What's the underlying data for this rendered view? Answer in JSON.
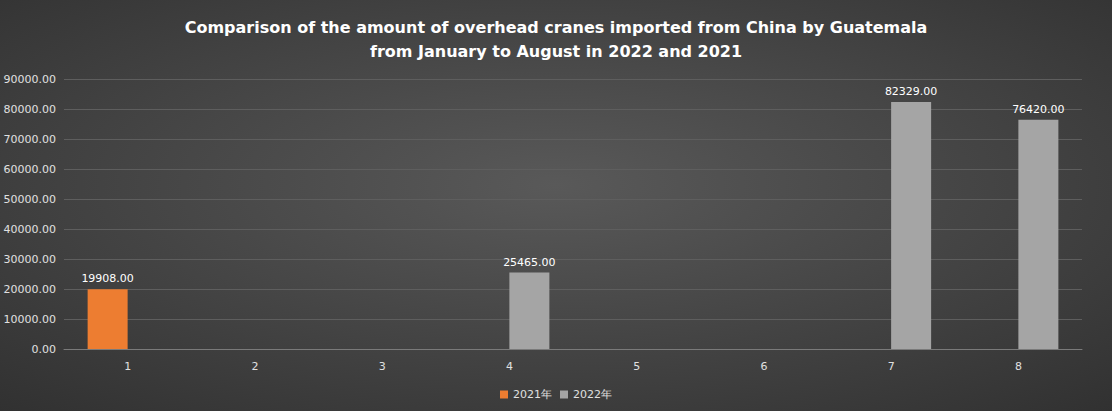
{
  "chart_data": {
    "type": "bar",
    "title": "Comparison of the amount of overhead cranes imported from China by Guatemala\nfrom January to August in 2022 and 2021",
    "categories": [
      "1",
      "2",
      "3",
      "4",
      "5",
      "6",
      "7",
      "8"
    ],
    "series": [
      {
        "name": "2021年",
        "color": "#ED7D31",
        "values": [
          19908,
          null,
          null,
          null,
          null,
          null,
          null,
          null
        ],
        "value_labels": [
          "19908.00",
          null,
          null,
          null,
          null,
          null,
          null,
          null
        ]
      },
      {
        "name": "2022年",
        "color": "#A5A5A5",
        "values": [
          null,
          null,
          null,
          25465,
          null,
          null,
          82329,
          76420
        ],
        "value_labels": [
          null,
          null,
          null,
          "25465.00",
          null,
          null,
          "82329.00",
          "76420.00"
        ]
      }
    ],
    "ylim": [
      0,
      90000
    ],
    "yticks": [
      {
        "value": 0,
        "label": "0.00"
      },
      {
        "value": 10000,
        "label": "10000.00"
      },
      {
        "value": 20000,
        "label": "20000.00"
      },
      {
        "value": 30000,
        "label": "30000.00"
      },
      {
        "value": 40000,
        "label": "40000.00"
      },
      {
        "value": 50000,
        "label": "50000.00"
      },
      {
        "value": 60000,
        "label": "60000.00"
      },
      {
        "value": 70000,
        "label": "70000.00"
      },
      {
        "value": 80000,
        "label": "80000.00"
      },
      {
        "value": 90000,
        "label": "90000.00"
      }
    ],
    "grid": true,
    "legend": "bottom",
    "data_labels": true
  }
}
